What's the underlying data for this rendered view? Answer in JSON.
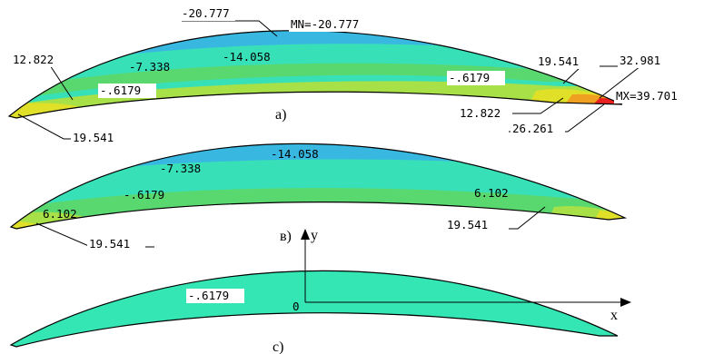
{
  "colors": {
    "c_min": "#1a1ae0",
    "c_n14": "#2a7ad8",
    "c_n7": "#38b8e0",
    "c_neg06": "#38e0b8",
    "c_p6": "#5ad870",
    "c_p12": "#a8e048",
    "c_p19": "#e0e028",
    "c_p26": "#f0a020",
    "c_max": "#e82020",
    "uniform": "#35e6b5"
  },
  "panel_a": {
    "caption": "a)",
    "labels": {
      "top_value": "-20.777",
      "min_label": "MN=-20.777",
      "inner_n14": "-14.058",
      "inner_n7": "-7.338",
      "left_p12": "12.822",
      "left_neg06": "-.6179",
      "left_p19": "19.541",
      "right_neg06": "-.6179",
      "right_p19": "19.541",
      "right_p32": "32.981",
      "max_label": "MX=39.701",
      "right_p12": "12.822",
      "right_p26": "26.261"
    }
  },
  "panel_b": {
    "caption": "в)",
    "labels": {
      "inner_n14": "-14.058",
      "inner_n7": "-7.338",
      "inner_neg06": "-.6179",
      "left_p6": "6.102",
      "right_p6": "6.102",
      "left_p19": "19.541",
      "right_p19": "19.541"
    }
  },
  "panel_c": {
    "caption": "c)",
    "labels": {
      "value": "-.6179",
      "origin": "0",
      "axis_x": "x",
      "axis_y": "y"
    }
  }
}
